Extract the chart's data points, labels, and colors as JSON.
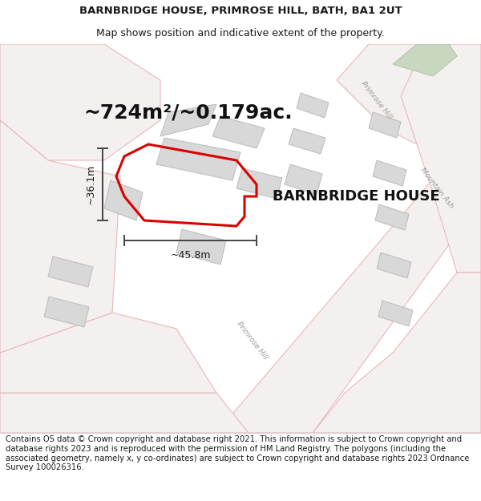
{
  "title_line1": "BARNBRIDGE HOUSE, PRIMROSE HILL, BATH, BA1 2UT",
  "title_line2": "Map shows position and indicative extent of the property.",
  "property_label": "BARNBRIDGE HOUSE",
  "area_label": "~724m²/~0.179ac.",
  "width_label": "~45.8m",
  "height_label": "~36.1m",
  "footer_text": "Contains OS data © Crown copyright and database right 2021. This information is subject to Crown copyright and database rights 2023 and is reproduced with the permission of HM Land Registry. The polygons (including the associated geometry, namely x, y co-ordinates) are subject to Crown copyright and database rights 2023 Ordnance Survey 100026316.",
  "bg_color": "#f7f4f4",
  "road_line_color": "#e8b8b8",
  "road_fill": "#eeeeee",
  "building_fill": "#d8d8d8",
  "building_edge": "#bbbbbb",
  "green_fill": "#c8d8c0",
  "green_edge": "#b0c8a8",
  "property_outline_color": "#dd0000",
  "dim_line_color": "#444444",
  "road_label_color": "#999999",
  "title_fontsize": 9.5,
  "subtitle_fontsize": 9.0,
  "area_fontsize": 18,
  "label_fontsize": 13,
  "footer_fontsize": 7.2
}
